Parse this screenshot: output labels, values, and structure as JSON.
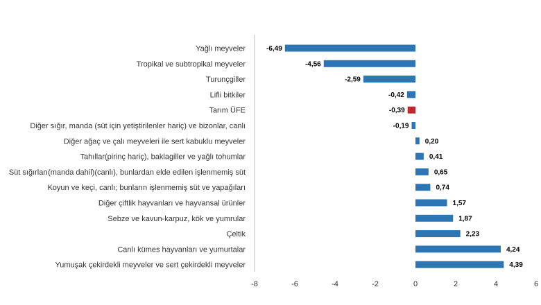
{
  "chart_data": {
    "type": "bar",
    "orientation": "horizontal",
    "title": "",
    "xlabel": "",
    "ylabel": "",
    "xlim": [
      -8,
      6
    ],
    "xticks": [
      "-8",
      "-6",
      "-4",
      "-2",
      "0",
      "2",
      "4",
      "6"
    ],
    "xtick_values": [
      -8,
      -6,
      -4,
      -2,
      0,
      2,
      4,
      6
    ],
    "grid": false,
    "legend": "none",
    "colors": {
      "default": "#2e75b6",
      "highlight": "#c0282d"
    },
    "highlight_category": "Tarım ÜFE",
    "categories": [
      "Yağlı meyveler",
      "Tropikal ve subtropikal meyveler",
      "Turunçgiller",
      "Lifli bitkiler",
      "Tarım ÜFE",
      "Diğer sığır, manda (süt için yetiştirilenler hariç) ve bizonlar, canlı",
      "Diğer ağaç ve çalı meyveleri ile sert kabuklu meyveler",
      "Tahıllar(pirinç hariç), baklagiller ve yağlı tohumlar",
      "Süt sığırları(manda dahil)(canlı), bunlardan elde edilen işlenmemiş süt",
      "Koyun ve keçi, canlı; bunların işlenmemiş süt ve yapağıları",
      "Diğer çiftlik hayvanları ve hayvansal ürünler",
      "Sebze ve kavun-karpuz, kök ve yumrular",
      "Çeltik",
      "Canlı kümes hayvanları ve yumurtalar",
      "Yumuşak çekirdekli meyveler ve sert çekirdekli meyveler"
    ],
    "values": [
      -6.49,
      -4.56,
      -2.59,
      -0.42,
      -0.39,
      -0.19,
      0.2,
      0.41,
      0.65,
      0.74,
      1.57,
      1.87,
      2.23,
      4.24,
      4.39
    ],
    "value_labels": [
      "-6,49",
      "-4,56",
      "-2,59",
      "-0,42",
      "-0,39",
      "-0,19",
      "0,20",
      "0,41",
      "0,65",
      "0,74",
      "1,57",
      "1,87",
      "2,23",
      "4,24",
      "4,39"
    ]
  }
}
